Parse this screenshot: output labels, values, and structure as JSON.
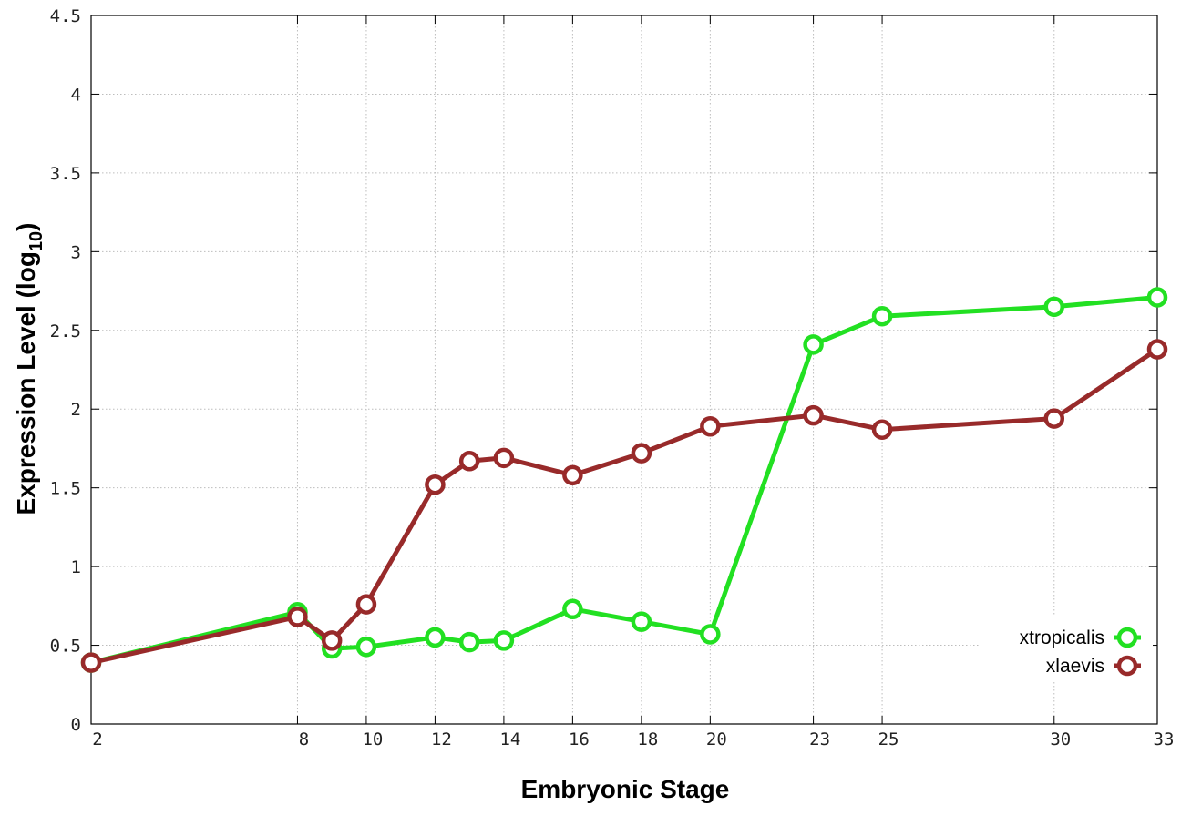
{
  "chart_data": {
    "type": "line",
    "xlabel": "Embryonic Stage",
    "ylabel_main": "Expression Level (log",
    "ylabel_sub": "10",
    "ylabel_close": ")",
    "x_ticks": [
      2,
      8,
      10,
      12,
      14,
      16,
      18,
      20,
      23,
      25,
      30,
      33
    ],
    "y_ticks": [
      0,
      0.5,
      1,
      1.5,
      2,
      2.5,
      3,
      3.5,
      4,
      4.5
    ],
    "xlim": [
      2,
      33
    ],
    "ylim": [
      0,
      4.5
    ],
    "grid": true,
    "legend_position": "bottom-right",
    "series": [
      {
        "name": "xtropicalis",
        "color": "#22e022",
        "x": [
          2,
          8,
          9,
          10,
          12,
          13,
          14,
          16,
          18,
          20,
          23,
          25,
          30,
          33
        ],
        "y": [
          0.39,
          0.71,
          0.48,
          0.49,
          0.55,
          0.52,
          0.53,
          0.73,
          0.65,
          0.57,
          2.41,
          2.59,
          2.65,
          2.71
        ]
      },
      {
        "name": "xlaevis",
        "color": "#982a2a",
        "x": [
          2,
          8,
          9,
          10,
          12,
          13,
          14,
          16,
          18,
          20,
          23,
          25,
          30,
          33
        ],
        "y": [
          0.39,
          0.68,
          0.53,
          0.76,
          1.52,
          1.67,
          1.69,
          1.58,
          1.72,
          1.89,
          1.96,
          1.87,
          1.94,
          2.38
        ]
      }
    ]
  }
}
